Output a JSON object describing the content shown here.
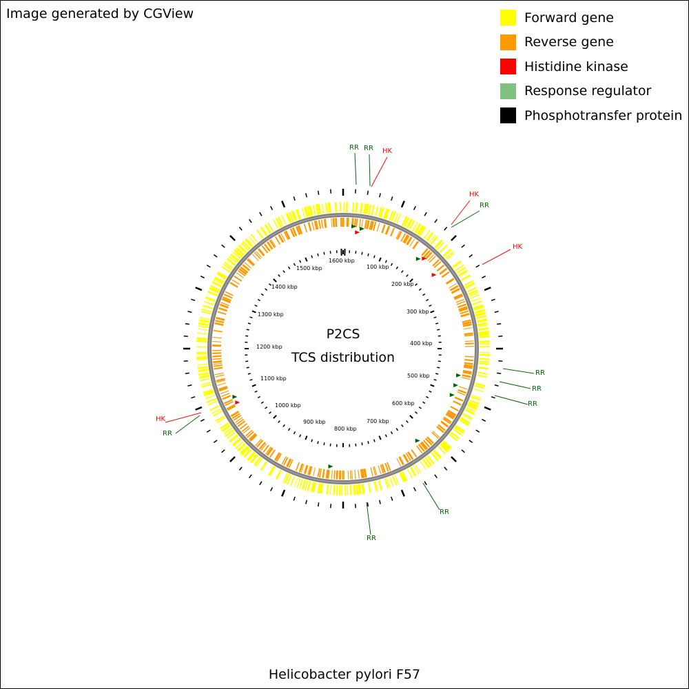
{
  "credit": "Image generated by CGView",
  "caption": "Helicobacter pylori F57",
  "center": {
    "line1": "P2CS",
    "line2": "TCS distribution"
  },
  "legend": [
    {
      "label": "Forward gene",
      "color": "#ffff00"
    },
    {
      "label": "Reverse gene",
      "color": "#ff9900"
    },
    {
      "label": "Histidine kinase",
      "color": "#ff0000"
    },
    {
      "label": "Response regulator",
      "color": "#80c080"
    },
    {
      "label": "Phosphotransfer protein",
      "color": "#000000"
    }
  ],
  "colors": {
    "forward": "#ffff00",
    "reverse": "#ff9900",
    "backbone": "#808080",
    "hk": "#ff0000",
    "rr": "#006600",
    "ticks": "#000000"
  },
  "ruler": {
    "unit": "kbp",
    "labels": [
      "100 kbp",
      "200 kbp",
      "300 kbp",
      "400 kbp",
      "500 kbp",
      "600 kbp",
      "700 kbp",
      "800 kbp",
      "900 kbp",
      "1000 kbp",
      "1100 kbp",
      "1200 kbp",
      "1300 kbp",
      "1400 kbp",
      "1500 kbp",
      "1600 kbp"
    ]
  },
  "callouts": [
    {
      "label": "RR",
      "kind": "rr"
    },
    {
      "label": "RR",
      "kind": "rr"
    },
    {
      "label": "HK",
      "kind": "hk"
    },
    {
      "label": "HK",
      "kind": "hk"
    },
    {
      "label": "RR",
      "kind": "rr"
    },
    {
      "label": "HK",
      "kind": "hk"
    },
    {
      "label": "RR",
      "kind": "rr"
    },
    {
      "label": "RR",
      "kind": "rr"
    },
    {
      "label": "RR",
      "kind": "rr"
    },
    {
      "label": "RR",
      "kind": "rr"
    },
    {
      "label": "RR",
      "kind": "rr"
    },
    {
      "label": "HK",
      "kind": "hk"
    },
    {
      "label": "RR",
      "kind": "rr"
    }
  ],
  "tcs_markers": [
    "rr",
    "hk",
    "rr",
    "rr",
    "hk",
    "hk",
    "rr",
    "rr",
    "rr",
    "rr",
    "rr",
    "hk",
    "rr"
  ]
}
